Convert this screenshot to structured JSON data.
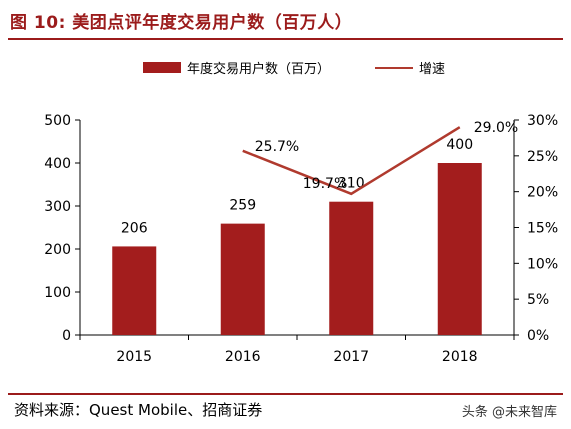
{
  "figure": {
    "title": "图 10:  美团点评年度交易用户数（百万人）",
    "source": "资料来源：Quest Mobile、招商证券",
    "watermark": "头条 @未来智库"
  },
  "legend": {
    "bar_label": "年度交易用户数（百万）",
    "line_label": "增速"
  },
  "colors": {
    "bar": "#a31d1d",
    "line": "#b03a2e",
    "title": "#9b1b1b"
  },
  "chart_data": {
    "type": "bar",
    "categories": [
      "2015",
      "2016",
      "2017",
      "2018"
    ],
    "series": [
      {
        "name": "年度交易用户数（百万）",
        "type": "bar",
        "axis": "left",
        "values": [
          206,
          259,
          310,
          400
        ],
        "labels": [
          "206",
          "259",
          "310",
          "400"
        ]
      },
      {
        "name": "增速",
        "type": "line",
        "axis": "right",
        "values": [
          null,
          25.7,
          19.7,
          29.0
        ],
        "labels": [
          "",
          "25.7%",
          "19.7%",
          "29.0%"
        ]
      }
    ],
    "left_axis": {
      "ylim": [
        0,
        500
      ],
      "ticks": [
        "0",
        "100",
        "200",
        "300",
        "400",
        "500"
      ]
    },
    "right_axis": {
      "ylim": [
        0,
        30
      ],
      "ticks": [
        "0%",
        "5%",
        "10%",
        "15%",
        "20%",
        "25%",
        "30%"
      ]
    },
    "grid": false
  }
}
